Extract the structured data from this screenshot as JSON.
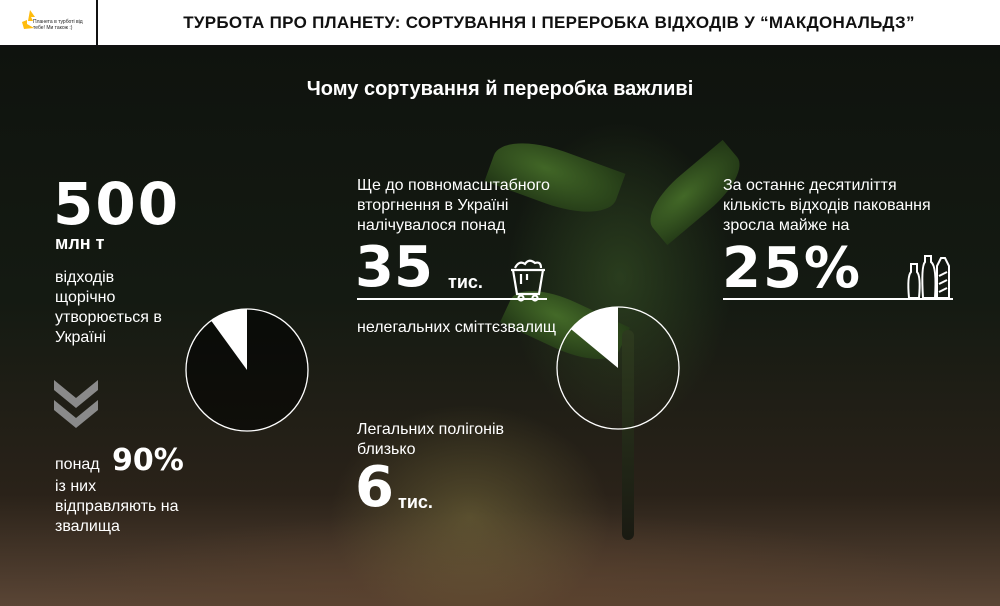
{
  "header": {
    "logo_text": "Планета в турботі від тебе! Ми також :)",
    "title": "ТУРБОТА ПРО ПЛАНЕТУ: СОРТУВАННЯ І ПЕРЕРОБКА ВІДХОДІВ У “МАКДОНАЛЬДЗ”"
  },
  "main": {
    "heading": "Чому сортування й переробка важливі",
    "col1": {
      "number": "500",
      "unit": "млн т",
      "text1": "відходів щорічно утворюється в Україні",
      "prefix": "понад",
      "percent": "90%",
      "text2": "із них відправляють на звалища",
      "pie_share_percent": 10
    },
    "col2": {
      "text1": "Ще до повномасштабного вторгнення в Україні налічувалося понад",
      "number": "35",
      "unit": "тис.",
      "text2": "нелегальних сміттєзвалищ",
      "text3": "Легальних полігонів близько",
      "number2": "6",
      "unit2": "тис.",
      "pie_share_percent": 14,
      "icon": "trash-cart-icon"
    },
    "col3": {
      "text1": "За останнє десятиліття кількість відходів паковання зросла майже на",
      "number": "25%",
      "icon": "packaging-icon"
    }
  },
  "colors": {
    "logo": "#ffbc0d",
    "text": "#ffffff"
  }
}
